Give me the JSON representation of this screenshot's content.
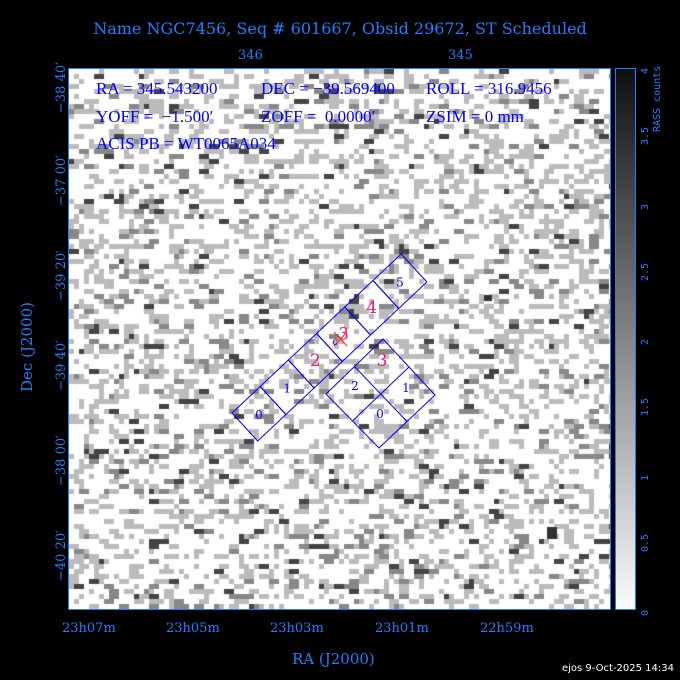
{
  "title": "Name NGC7456, Seq # 601667, Obsid 29672, ST Scheduled",
  "info": {
    "line1": [
      "RA = 345.543200",
      "DEC = −39.569400",
      "ROLL = 316.9456"
    ],
    "line2": [
      "YOFF =  −1.500′",
      "ZOFF =  0.0000′",
      "ZSIM = 0 mm"
    ],
    "line3": "ACIS PB = WT0065A034"
  },
  "axes": {
    "xlabel": "RA (J2000)",
    "ylabel": "Dec (J2000)",
    "x_ticks": [
      "23h07m",
      "23h05m",
      "23h03m",
      "23h01m",
      "22h59m"
    ],
    "top_ticks": [
      "346",
      "345"
    ],
    "y_ticks": [
      "−38 40′",
      "−37 00′",
      "−39 20′",
      "−39 40′",
      "−38 00′",
      "−40 20′"
    ]
  },
  "colorbar": {
    "label": "RASS counts",
    "ticks": [
      "0",
      "0.5",
      "1",
      "1.5",
      "2",
      "2.5",
      "3",
      "3.5",
      "4"
    ],
    "range": [
      0,
      4
    ]
  },
  "chips": {
    "strip_labels": [
      "0",
      "1",
      "2",
      "3",
      "4",
      "5"
    ],
    "array_labels": [
      "0",
      "1",
      "2",
      "3"
    ],
    "active_color": "#e8206a",
    "chip_color": "#0000ff",
    "aimpoint_color": "#ff2020",
    "aimpoint_mark": "c"
  },
  "footer": "ejos  9-Oct-2025 14:34"
}
